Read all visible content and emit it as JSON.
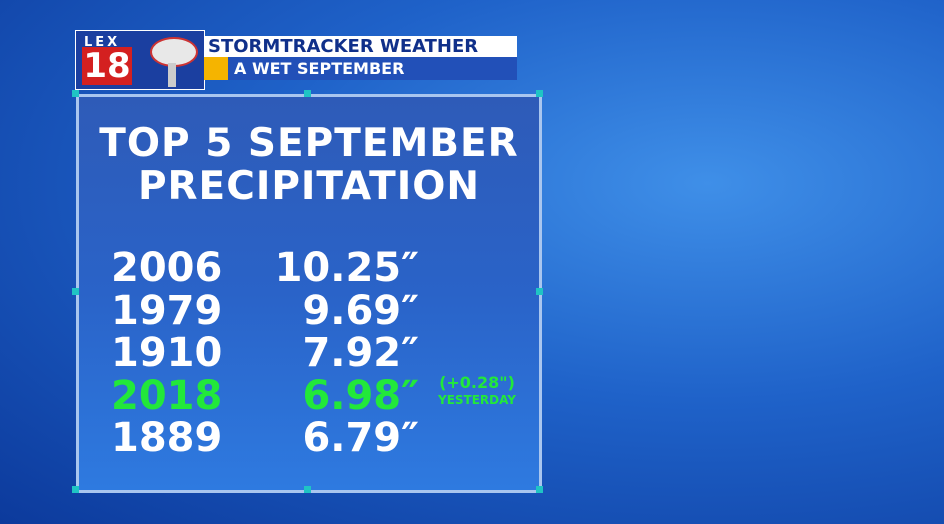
{
  "logo": {
    "station": "LEX",
    "channel": "18"
  },
  "banner": {
    "title": "STORMTRACKER WEATHER",
    "subtitle": "A WET SEPTEMBER"
  },
  "panel": {
    "title_lines": [
      "TOP 5 SEPTEMBER",
      "PRECIPITATION"
    ],
    "rows": [
      {
        "year": "2006",
        "amount": "10.25″",
        "color": "#ffffff"
      },
      {
        "year": "1979",
        "amount": "9.69″",
        "color": "#ffffff"
      },
      {
        "year": "1910",
        "amount": "7.92″",
        "color": "#ffffff"
      },
      {
        "year": "2018",
        "amount": "6.98″",
        "color": "#22e83a"
      },
      {
        "year": "1889",
        "amount": "6.79″",
        "color": "#ffffff"
      }
    ],
    "note": {
      "change": "(+0.28\")",
      "label": "YESTERDAY",
      "color": "#22e83a"
    }
  }
}
